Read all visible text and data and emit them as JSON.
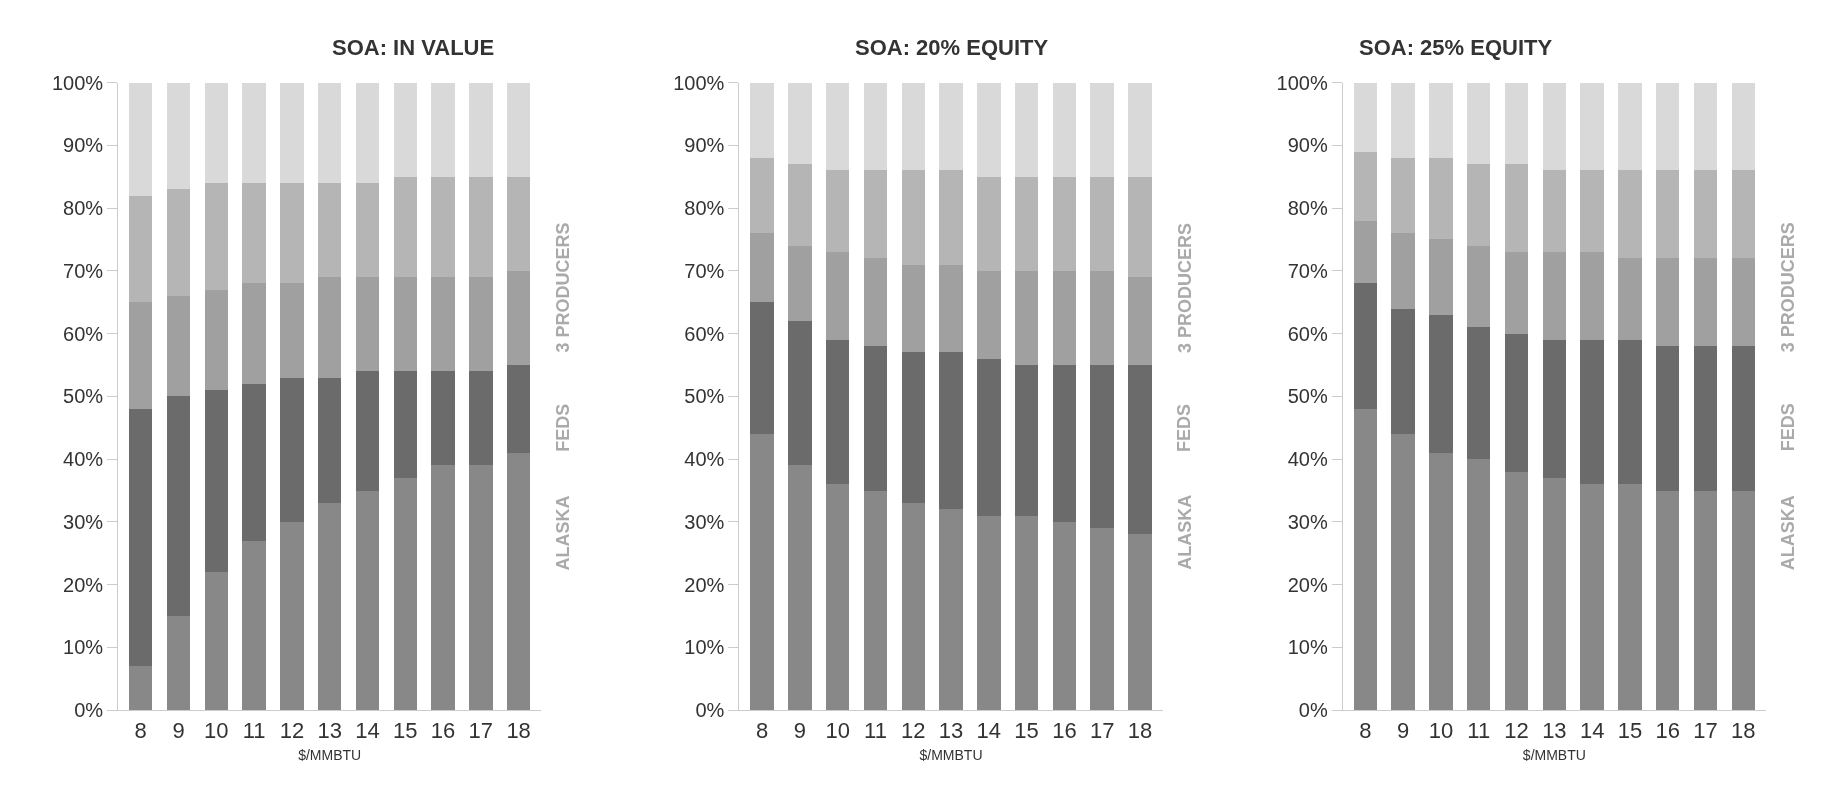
{
  "chart_data": [
    {
      "type": "bar",
      "title": "SOA: IN VALUE",
      "xlabel": "$/MMBTU",
      "stacked": true,
      "categories": [
        "8",
        "9",
        "10",
        "11",
        "12",
        "13",
        "14",
        "15",
        "16",
        "17",
        "18"
      ],
      "ylim": [
        0,
        100
      ],
      "yticks": [
        {
          "value": 0,
          "label": "0%"
        },
        {
          "value": 10,
          "label": "10%"
        },
        {
          "value": 20,
          "label": "20%"
        },
        {
          "value": 30,
          "label": "30%"
        },
        {
          "value": 40,
          "label": "40%"
        },
        {
          "value": 50,
          "label": "50%"
        },
        {
          "value": 60,
          "label": "60%"
        },
        {
          "value": 70,
          "label": "70%"
        },
        {
          "value": 80,
          "label": "80%"
        },
        {
          "value": 90,
          "label": "90%"
        },
        {
          "value": 100,
          "label": "100%"
        }
      ],
      "series": [
        {
          "color": "#888888",
          "values": [
            7,
            15,
            22,
            27,
            30,
            33,
            35,
            37,
            39,
            39,
            41
          ]
        },
        {
          "color": "#6b6b6b",
          "values": [
            41,
            35,
            29,
            25,
            23,
            20,
            19,
            17,
            15,
            15,
            14
          ]
        },
        {
          "color": "#a0a0a0",
          "values": [
            17,
            16,
            16,
            16,
            15,
            16,
            15,
            15,
            15,
            15,
            15
          ]
        },
        {
          "color": "#b5b5b5",
          "values": [
            17,
            17,
            17,
            16,
            16,
            15,
            15,
            16,
            16,
            16,
            15
          ]
        },
        {
          "color": "#d9d9d9",
          "values": [
            18,
            17,
            16,
            16,
            16,
            16,
            16,
            15,
            15,
            15,
            15
          ]
        }
      ],
      "annotations": [
        "ALASKA",
        "FEDS",
        "3 PRODUCERS"
      ]
    },
    {
      "type": "bar",
      "title": "SOA: 20% EQUITY",
      "xlabel": "$/MMBTU",
      "stacked": true,
      "categories": [
        "8",
        "9",
        "10",
        "11",
        "12",
        "13",
        "14",
        "15",
        "16",
        "17",
        "18"
      ],
      "ylim": [
        0,
        100
      ],
      "yticks": [
        {
          "value": 0,
          "label": "0%"
        },
        {
          "value": 10,
          "label": "10%"
        },
        {
          "value": 20,
          "label": "20%"
        },
        {
          "value": 30,
          "label": "30%"
        },
        {
          "value": 40,
          "label": "40%"
        },
        {
          "value": 50,
          "label": "50%"
        },
        {
          "value": 60,
          "label": "60%"
        },
        {
          "value": 70,
          "label": "70%"
        },
        {
          "value": 80,
          "label": "80%"
        },
        {
          "value": 90,
          "label": "90%"
        },
        {
          "value": 100,
          "label": "100%"
        }
      ],
      "series": [
        {
          "color": "#888888",
          "values": [
            44,
            39,
            36,
            35,
            33,
            32,
            31,
            31,
            30,
            29,
            28
          ]
        },
        {
          "color": "#6b6b6b",
          "values": [
            21,
            23,
            23,
            23,
            24,
            25,
            25,
            24,
            25,
            26,
            27
          ]
        },
        {
          "color": "#a0a0a0",
          "values": [
            11,
            12,
            14,
            14,
            14,
            14,
            14,
            15,
            15,
            15,
            14
          ]
        },
        {
          "color": "#b5b5b5",
          "values": [
            12,
            13,
            13,
            14,
            15,
            15,
            15,
            15,
            15,
            15,
            16
          ]
        },
        {
          "color": "#d9d9d9",
          "values": [
            12,
            13,
            14,
            14,
            14,
            14,
            15,
            15,
            15,
            15,
            15
          ]
        }
      ],
      "annotations": [
        "ALASKA",
        "FEDS",
        "3 PRODUCERS"
      ]
    },
    {
      "type": "bar",
      "title": "SOA: 25% EQUITY",
      "xlabel": "$/MMBTU",
      "stacked": true,
      "categories": [
        "8",
        "9",
        "10",
        "11",
        "12",
        "13",
        "14",
        "15",
        "16",
        "17",
        "18"
      ],
      "ylim": [
        0,
        100
      ],
      "yticks": [
        {
          "value": 0,
          "label": "0%"
        },
        {
          "value": 10,
          "label": "10%"
        },
        {
          "value": 20,
          "label": "20%"
        },
        {
          "value": 30,
          "label": "30%"
        },
        {
          "value": 40,
          "label": "40%"
        },
        {
          "value": 50,
          "label": "50%"
        },
        {
          "value": 60,
          "label": "60%"
        },
        {
          "value": 70,
          "label": "70%"
        },
        {
          "value": 80,
          "label": "80%"
        },
        {
          "value": 90,
          "label": "90%"
        },
        {
          "value": 100,
          "label": "100%"
        }
      ],
      "series": [
        {
          "color": "#888888",
          "values": [
            48,
            44,
            41,
            40,
            38,
            37,
            36,
            36,
            35,
            35,
            35
          ]
        },
        {
          "color": "#6b6b6b",
          "values": [
            20,
            20,
            22,
            21,
            22,
            22,
            23,
            23,
            23,
            23,
            23
          ]
        },
        {
          "color": "#a0a0a0",
          "values": [
            10,
            12,
            12,
            13,
            13,
            14,
            14,
            13,
            14,
            14,
            14
          ]
        },
        {
          "color": "#b5b5b5",
          "values": [
            11,
            12,
            13,
            13,
            14,
            13,
            13,
            14,
            14,
            14,
            14
          ]
        },
        {
          "color": "#d9d9d9",
          "values": [
            11,
            12,
            12,
            13,
            13,
            14,
            14,
            14,
            14,
            14,
            14
          ]
        }
      ],
      "annotations": [
        "ALASKA",
        "FEDS",
        "3 PRODUCERS"
      ]
    }
  ]
}
